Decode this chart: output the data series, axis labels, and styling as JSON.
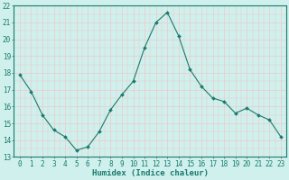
{
  "x": [
    0,
    1,
    2,
    3,
    4,
    5,
    6,
    7,
    8,
    9,
    10,
    11,
    12,
    13,
    14,
    15,
    16,
    17,
    18,
    19,
    20,
    21,
    22,
    23
  ],
  "y": [
    17.9,
    16.9,
    15.5,
    14.6,
    14.2,
    13.4,
    13.6,
    14.5,
    15.8,
    16.7,
    17.5,
    19.5,
    21.0,
    21.6,
    20.2,
    18.2,
    17.2,
    16.5,
    16.3,
    15.6,
    15.9,
    15.5,
    15.2,
    14.2
  ],
  "line_color": "#1a7a6e",
  "marker": "D",
  "marker_size": 2.0,
  "bg_color": "#cff0ec",
  "grid_major_color": "#f0c8c8",
  "grid_minor_color": "#cff0ec",
  "ylim": [
    13,
    22
  ],
  "xlim": [
    -0.5,
    23.5
  ],
  "yticks": [
    13,
    14,
    15,
    16,
    17,
    18,
    19,
    20,
    21,
    22
  ],
  "xticks": [
    0,
    1,
    2,
    3,
    4,
    5,
    6,
    7,
    8,
    9,
    10,
    11,
    12,
    13,
    14,
    15,
    16,
    17,
    18,
    19,
    20,
    21,
    22,
    23
  ],
  "xlabel": "Humidex (Indice chaleur)",
  "tick_fontsize": 5.5,
  "xlabel_fontsize": 6.5,
  "spine_color": "#1a7a6e"
}
